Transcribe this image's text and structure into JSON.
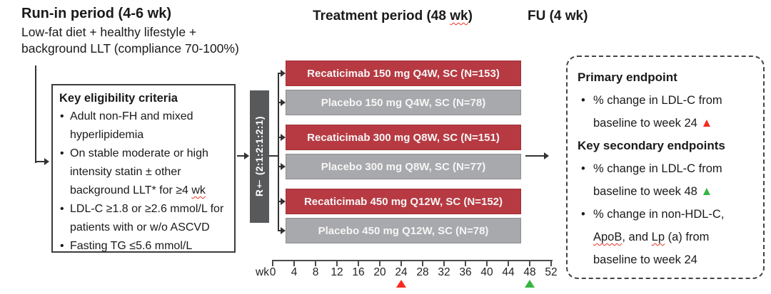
{
  "colors": {
    "arm_red": "#b73a42",
    "arm_gray": "#a8a9ac",
    "rand_bar": "#58595b",
    "marker_red": "#f82a1e",
    "marker_green": "#33b540"
  },
  "header": {
    "runin_title": "Run-in period (4-6 wk)",
    "runin_sub": "Low-fat diet + healthy lifestyle +\nbackground LLT (compliance 70-100%)",
    "treatment_pre": "Treatment period (48 ",
    "treatment_wavy": "wk",
    "treatment_post": ")",
    "fu_title": "FU (4 wk)"
  },
  "eligibility": {
    "title": "Key eligibility criteria",
    "bullet1": "Adult non-FH and mixed\nhyperlipidemia",
    "bullet2_pre": "On stable moderate or high\nintensity statin ± other\nbackground LLT* for ≥4 ",
    "bullet2_wavy": "wk",
    "bullet3": "LDL-C ≥1.8 or ≥2.6 mmol/L for\npatients with or w/o ASCVD",
    "bullet4": "Fasting TG ≤5.6 mmol/L"
  },
  "randomization": {
    "label": "R† (2:1:2:1:2:1)"
  },
  "arms": [
    {
      "label": "Recaticimab 150 mg Q4W, SC (N=153)",
      "type": "recaticimab"
    },
    {
      "label": "Placebo 150 mg Q4W, SC (N=78)",
      "type": "placebo"
    },
    {
      "label": "Recaticimab 300 mg Q8W, SC (N=151)",
      "type": "recaticimab"
    },
    {
      "label": "Placebo 300 mg Q8W, SC (N=77)",
      "type": "placebo"
    },
    {
      "label": "Recaticimab 450 mg Q12W, SC (N=152)",
      "type": "recaticimab"
    },
    {
      "label": "Placebo 450 mg Q12W, SC (N=78)",
      "type": "placebo"
    }
  ],
  "axis": {
    "unit": "wk",
    "ticks": [
      "0",
      "4",
      "8",
      "12",
      "16",
      "20",
      "24",
      "28",
      "32",
      "36",
      "40",
      "44",
      "48",
      "52"
    ],
    "markers": [
      {
        "week": "24",
        "color": "#f82a1e",
        "name": "primary-endpoint-week24-marker"
      },
      {
        "week": "48",
        "color": "#33b540",
        "name": "secondary-endpoint-week48-marker"
      }
    ]
  },
  "endpoints": {
    "primary_title": "Primary endpoint",
    "b1_text": "% change in LDL-C from\nbaseline to week 24 ",
    "b1_marker": "▲",
    "secondary_title": "Key secondary endpoints",
    "b2_text": "% change in LDL-C from\nbaseline to week 48 ",
    "b2_marker": "▲",
    "b3_p1": "% change in non-HDL-C,\n",
    "b3_w1": "ApoB",
    "b3_p2": ", and ",
    "b3_w2": "Lp",
    "b3_p3": " (a) from\nbaseline to week 24"
  }
}
